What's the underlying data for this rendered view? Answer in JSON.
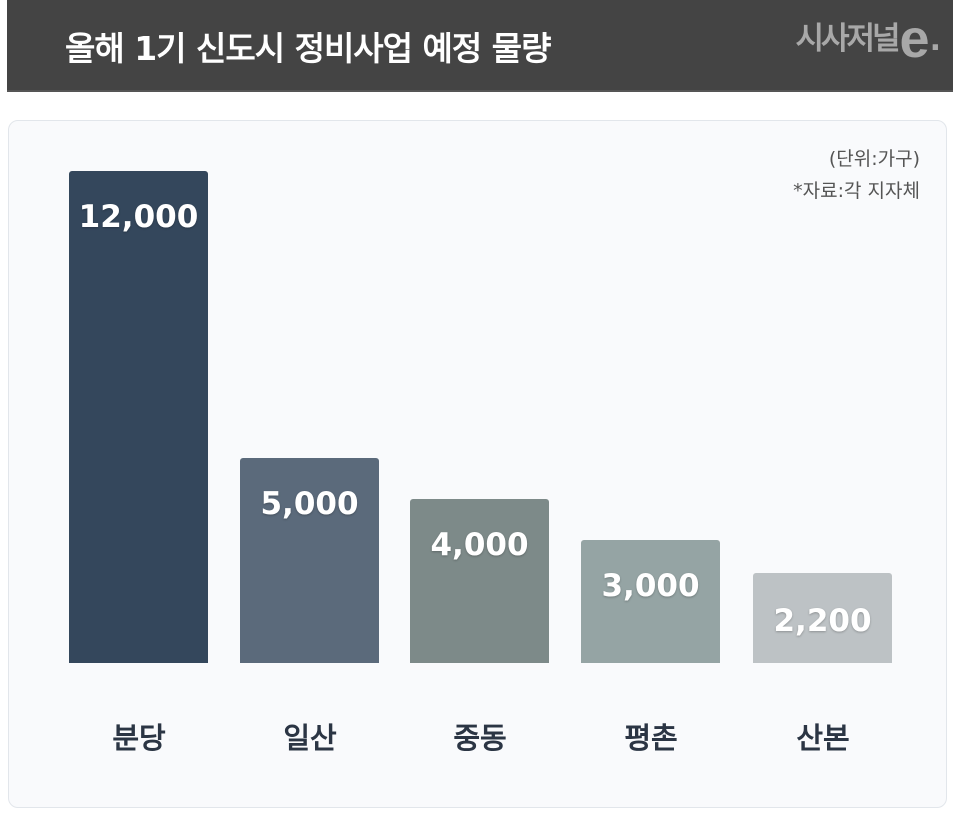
{
  "header": {
    "title": "올해 1기 신도시 정비사업 예정 물량",
    "logo_text": "시사저널",
    "logo_e": "e",
    "logo_dot": "."
  },
  "notes": {
    "unit": "(단위:가구)",
    "source": "*자료:각 지자체"
  },
  "bars": [
    {
      "label": "분당",
      "value_label": "12,000",
      "color": "#34475c"
    },
    {
      "label": "일산",
      "value_label": "5,000",
      "color": "#5b6a7b"
    },
    {
      "label": "중동",
      "value_label": "4,000",
      "color": "#7d8a89"
    },
    {
      "label": "평촌",
      "value_label": "3,000",
      "color": "#95a4a4"
    },
    {
      "label": "산본",
      "value_label": "2,200",
      "color": "#bdc2c5"
    }
  ],
  "chart_data": {
    "type": "bar",
    "title": "올해 1기 신도시 정비사업 예정 물량",
    "categories": [
      "분당",
      "일산",
      "중동",
      "평촌",
      "산본"
    ],
    "values": [
      12000,
      5000,
      4000,
      3000,
      2200
    ],
    "colors": [
      "#34475c",
      "#5b6a7b",
      "#7d8a89",
      "#95a4a4",
      "#bdc2c5"
    ],
    "unit": "가구",
    "annotations": [
      "(단위:가구)",
      "*자료:각 지자체"
    ],
    "xlabel": "",
    "ylabel": "",
    "ylim": [
      0,
      12000
    ],
    "grid": false,
    "legend": "none",
    "data_labels": "inside-top"
  }
}
